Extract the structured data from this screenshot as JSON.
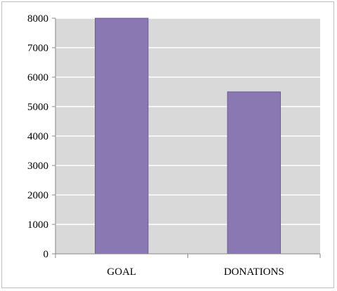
{
  "chart_data": {
    "type": "bar",
    "categories": [
      "GOAL",
      "DONATIONS"
    ],
    "values": [
      8000,
      5500
    ],
    "ylim": [
      0,
      8000
    ],
    "yticks": [
      0,
      1000,
      2000,
      3000,
      4000,
      5000,
      6000,
      7000,
      8000
    ],
    "grid": true,
    "legend": "none",
    "colors": {
      "bar": "#8a78b2",
      "bar_edge": "#6a5a96",
      "plot_bg": "#d9d9d9",
      "grid": "#ffffff",
      "axis": "#888888"
    }
  }
}
